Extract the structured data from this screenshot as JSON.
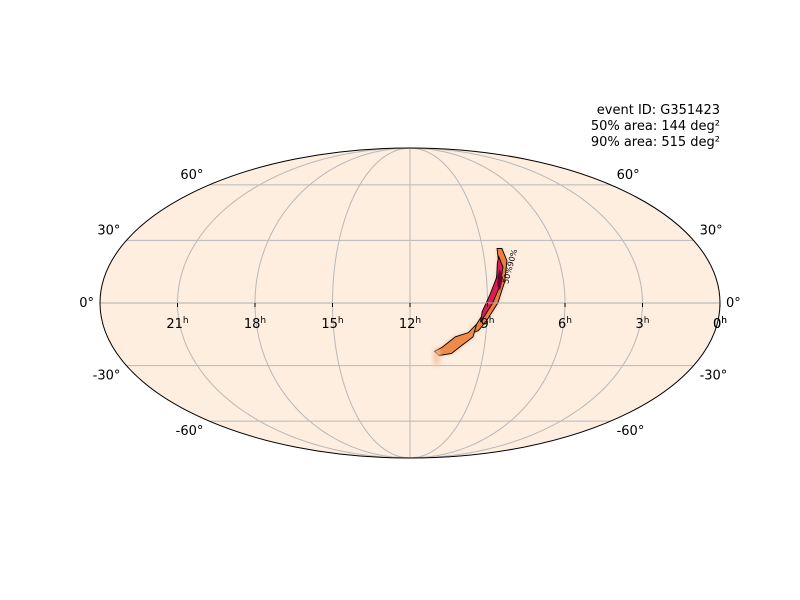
{
  "info": {
    "event_id": "event ID: G351423",
    "area_50": "50% area: 144 deg²",
    "area_90": "90% area: 515 deg²"
  },
  "chart_data": {
    "type": "heatmap",
    "projection": "mollweide",
    "background_color": "#fdeee0",
    "colormap": "cylon",
    "grid": true,
    "ra_ticks": [
      {
        "h": 0,
        "label": "0"
      },
      {
        "h": 21,
        "label": "21"
      },
      {
        "h": 18,
        "label": "18"
      },
      {
        "h": 15,
        "label": "15"
      },
      {
        "h": 12,
        "label": "12"
      },
      {
        "h": 9,
        "label": "9"
      },
      {
        "h": 6,
        "label": "6"
      },
      {
        "h": 3,
        "label": "3"
      },
      {
        "h": 0,
        "label": "0",
        "edge": "right"
      }
    ],
    "ra_tick_superscript": "h",
    "dec_ticks": [
      {
        "dec": 60,
        "label": "60°"
      },
      {
        "dec": 30,
        "label": "30°"
      },
      {
        "dec": 0,
        "label": "0°"
      },
      {
        "dec": -30,
        "label": "-30°"
      },
      {
        "dec": -60,
        "label": "-60°"
      }
    ],
    "contour_labels": [
      "50%",
      "90%"
    ],
    "credible_region": {
      "core_90": [
        [
          8.4,
          26
        ],
        [
          8.2,
          26
        ],
        [
          8.1,
          20
        ],
        [
          8.3,
          10
        ],
        [
          8.6,
          0
        ],
        [
          9.0,
          -8
        ],
        [
          9.3,
          -13
        ],
        [
          9.5,
          -14
        ],
        [
          9.4,
          -10
        ],
        [
          9.0,
          -2
        ],
        [
          8.7,
          8
        ],
        [
          8.45,
          18
        ]
      ],
      "tail_90": [
        [
          9.4,
          -10
        ],
        [
          9.7,
          -14
        ],
        [
          10.2,
          -16
        ],
        [
          10.7,
          -21
        ],
        [
          11.0,
          -23
        ],
        [
          10.8,
          -25
        ],
        [
          10.3,
          -24
        ],
        [
          9.9,
          -20
        ],
        [
          9.5,
          -16
        ]
      ],
      "contour_50": [
        [
          8.4,
          22
        ],
        [
          8.3,
          17
        ],
        [
          8.5,
          8
        ],
        [
          8.8,
          0
        ],
        [
          9.1,
          -6
        ],
        [
          9.25,
          -9
        ],
        [
          9.2,
          -4
        ],
        [
          8.9,
          4
        ],
        [
          8.6,
          12
        ],
        [
          8.5,
          19
        ]
      ],
      "peak": [
        [
          8.45,
          16
        ],
        [
          8.35,
          12
        ],
        [
          8.5,
          6
        ],
        [
          8.6,
          8
        ],
        [
          8.55,
          13
        ]
      ]
    }
  }
}
